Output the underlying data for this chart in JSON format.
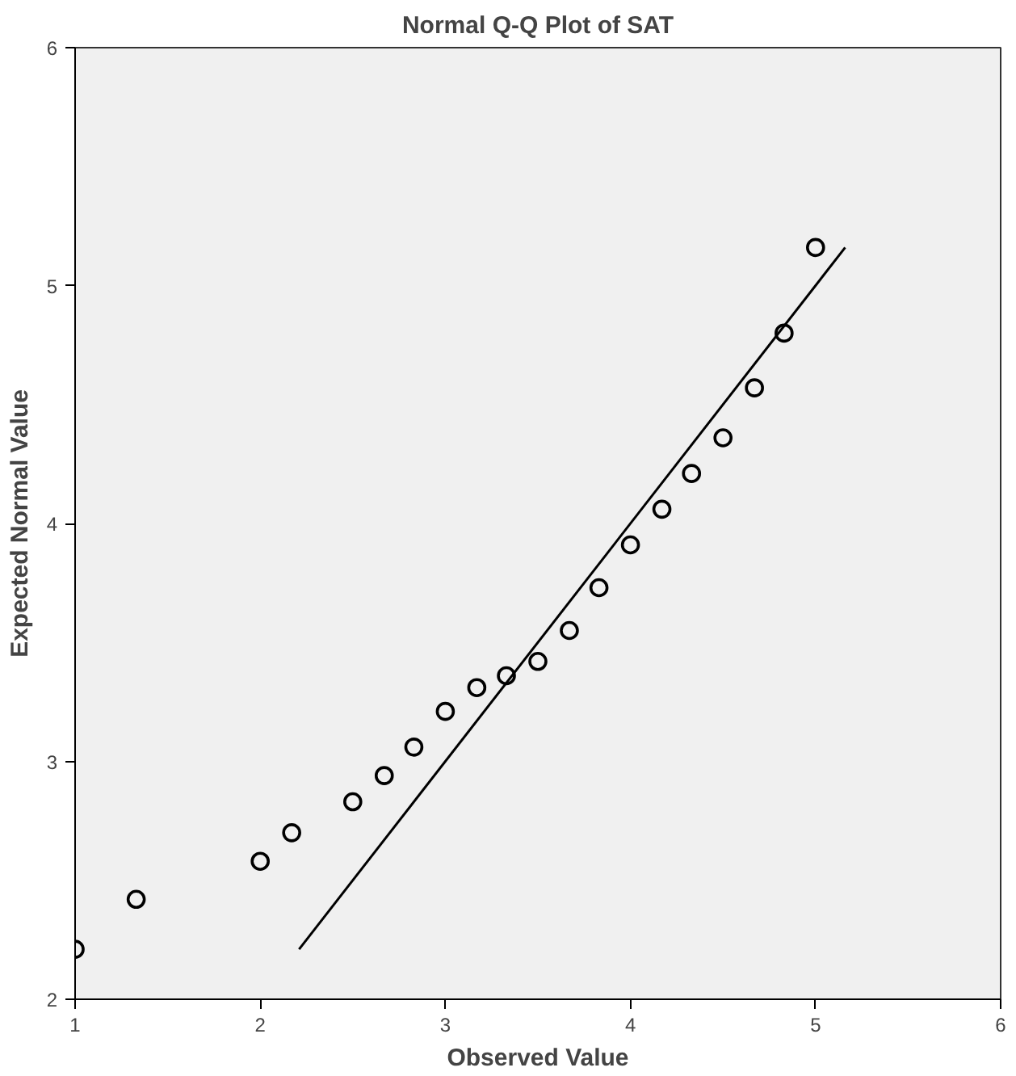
{
  "chart_data": {
    "type": "scatter",
    "title": "Normal Q-Q Plot of SAT",
    "xlabel": "Observed Value",
    "ylabel": "Expected Normal Value",
    "xlim": [
      1,
      6
    ],
    "ylim": [
      2,
      6
    ],
    "xticks": [
      1,
      2,
      3,
      4,
      5,
      6
    ],
    "yticks": [
      2,
      3,
      4,
      5,
      6
    ],
    "grid": false,
    "series": [
      {
        "marker": "circle",
        "color": "#000000",
        "x": [
          1.0,
          1.33,
          2.0,
          2.17,
          2.5,
          2.67,
          2.83,
          3.0,
          3.17,
          3.33,
          3.5,
          3.67,
          3.83,
          4.0,
          4.17,
          4.33,
          4.5,
          4.67,
          4.83,
          5.0
        ],
        "values": [
          2.21,
          2.42,
          2.58,
          2.7,
          2.83,
          2.94,
          3.06,
          3.21,
          3.31,
          3.36,
          3.42,
          3.55,
          3.73,
          3.91,
          4.06,
          4.21,
          4.36,
          4.57,
          4.8,
          5.16
        ]
      },
      {
        "type": "line",
        "color": "#000000",
        "x": [
          2.21,
          5.16
        ],
        "values": [
          2.21,
          5.16
        ]
      }
    ]
  }
}
